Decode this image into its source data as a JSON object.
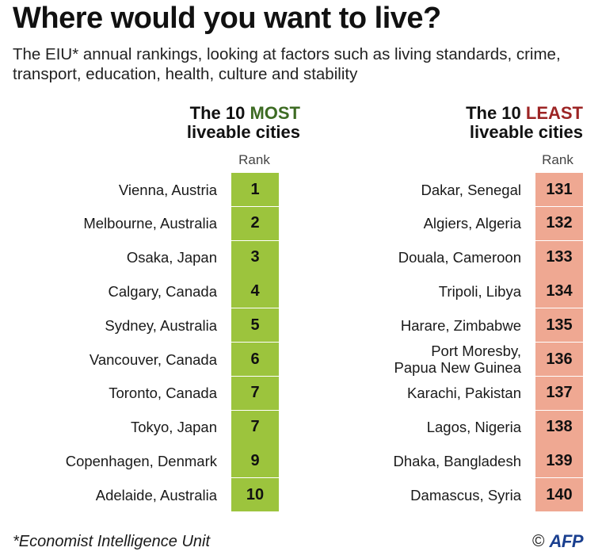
{
  "title": "Where would you want to live?",
  "subtitle": "The EIU* annual rankings, looking at factors such as living standards, crime, transport, education, health, culture and stability",
  "footnote": "*Economist Intelligence Unit",
  "credit": {
    "symbol": "©",
    "logo": "AFP"
  },
  "colors": {
    "most_accent": "#3d6b23",
    "most_badge": "#9cc43d",
    "least_accent": "#9c2424",
    "least_badge": "#efa892"
  },
  "chart_data": [
    {
      "type": "table",
      "heading": {
        "prefix": "The 10 ",
        "accent": "MOST",
        "suffix": "liveable cities"
      },
      "rank_label": "Rank",
      "rows": [
        {
          "city": [
            "Vienna, Austria"
          ],
          "rank": 1
        },
        {
          "city": [
            "Melbourne, Australia"
          ],
          "rank": 2
        },
        {
          "city": [
            "Osaka, Japan"
          ],
          "rank": 3
        },
        {
          "city": [
            "Calgary, Canada"
          ],
          "rank": 4
        },
        {
          "city": [
            "Sydney, Australia"
          ],
          "rank": 5
        },
        {
          "city": [
            "Vancouver, Canada"
          ],
          "rank": 6
        },
        {
          "city": [
            "Toronto, Canada"
          ],
          "rank": 7
        },
        {
          "city": [
            "Tokyo, Japan"
          ],
          "rank": 7
        },
        {
          "city": [
            "Copenhagen, Denmark"
          ],
          "rank": 9
        },
        {
          "city": [
            "Adelaide, Australia"
          ],
          "rank": 10
        }
      ]
    },
    {
      "type": "table",
      "heading": {
        "prefix": "The 10 ",
        "accent": "LEAST",
        "suffix": "liveable cities"
      },
      "rank_label": "Rank",
      "rows": [
        {
          "city": [
            "Dakar, Senegal"
          ],
          "rank": 131
        },
        {
          "city": [
            "Algiers, Algeria"
          ],
          "rank": 132
        },
        {
          "city": [
            "Douala, Cameroon"
          ],
          "rank": 133
        },
        {
          "city": [
            "Tripoli, Libya"
          ],
          "rank": 134
        },
        {
          "city": [
            "Harare, Zimbabwe"
          ],
          "rank": 135
        },
        {
          "city": [
            "Port Moresby,",
            "Papua New Guinea"
          ],
          "rank": 136
        },
        {
          "city": [
            "Karachi, Pakistan"
          ],
          "rank": 137
        },
        {
          "city": [
            "Lagos, Nigeria"
          ],
          "rank": 138
        },
        {
          "city": [
            "Dhaka, Bangladesh"
          ],
          "rank": 139
        },
        {
          "city": [
            "Damascus, Syria"
          ],
          "rank": 140
        }
      ]
    }
  ]
}
